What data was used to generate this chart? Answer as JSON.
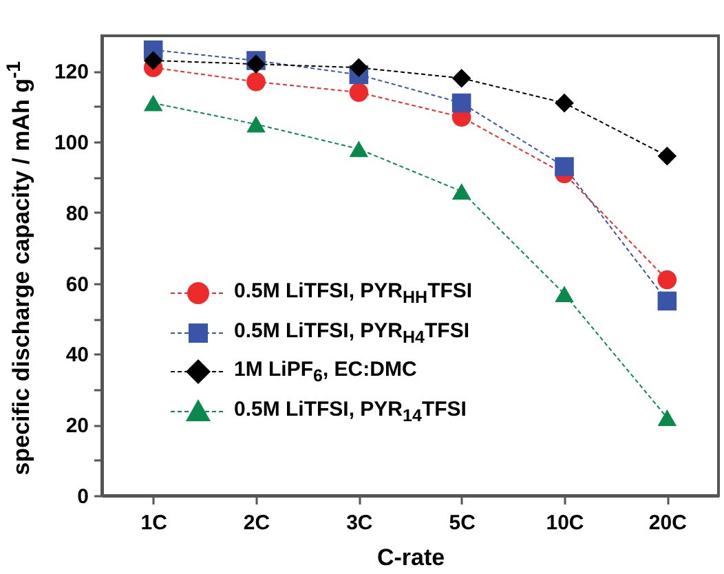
{
  "chart_data": {
    "type": "line",
    "xlabel": "C-rate",
    "ylabel": "specific discharge capacity / mAh g$^{-1}$",
    "categories": [
      "1C",
      "2C",
      "3C",
      "5C",
      "10C",
      "20C"
    ],
    "ylim": [
      0,
      130
    ],
    "yticks": [
      0,
      {
        "value": 10,
        "label": null
      },
      20,
      {
        "value": 30,
        "label": null
      },
      40,
      {
        "value": 50,
        "label": null
      },
      60,
      {
        "value": 70,
        "label": null
      },
      80,
      {
        "value": 90,
        "label": null
      },
      100,
      {
        "value": 110,
        "label": null
      },
      120
    ],
    "grid": false,
    "legend": "bottom left",
    "line_style": "dashed",
    "series": [
      {
        "name": "0.5M LiTFSI, PYR$_{HH}$TFSI",
        "color": "#ee2a2a",
        "marker": "circle",
        "values": [
          121,
          117,
          114,
          107,
          91,
          61
        ]
      },
      {
        "name": "0.5M LiTFSI, PYR$_{H4}$TFSI",
        "color": "#3a55a8",
        "marker": "square",
        "values": [
          126,
          123,
          119,
          111,
          93,
          55
        ]
      },
      {
        "name": "1M LiPF$_{6}$, EC:DMC",
        "color": "#000000",
        "marker": "diamond",
        "values": [
          123,
          122,
          121,
          118,
          111,
          96
        ]
      },
      {
        "name": "0.5M LiTFSI, PYR$_{14}$TFSI",
        "color": "#0a8a4a",
        "marker": "triangle",
        "values": [
          111,
          105,
          98,
          86,
          57,
          22
        ]
      }
    ]
  }
}
